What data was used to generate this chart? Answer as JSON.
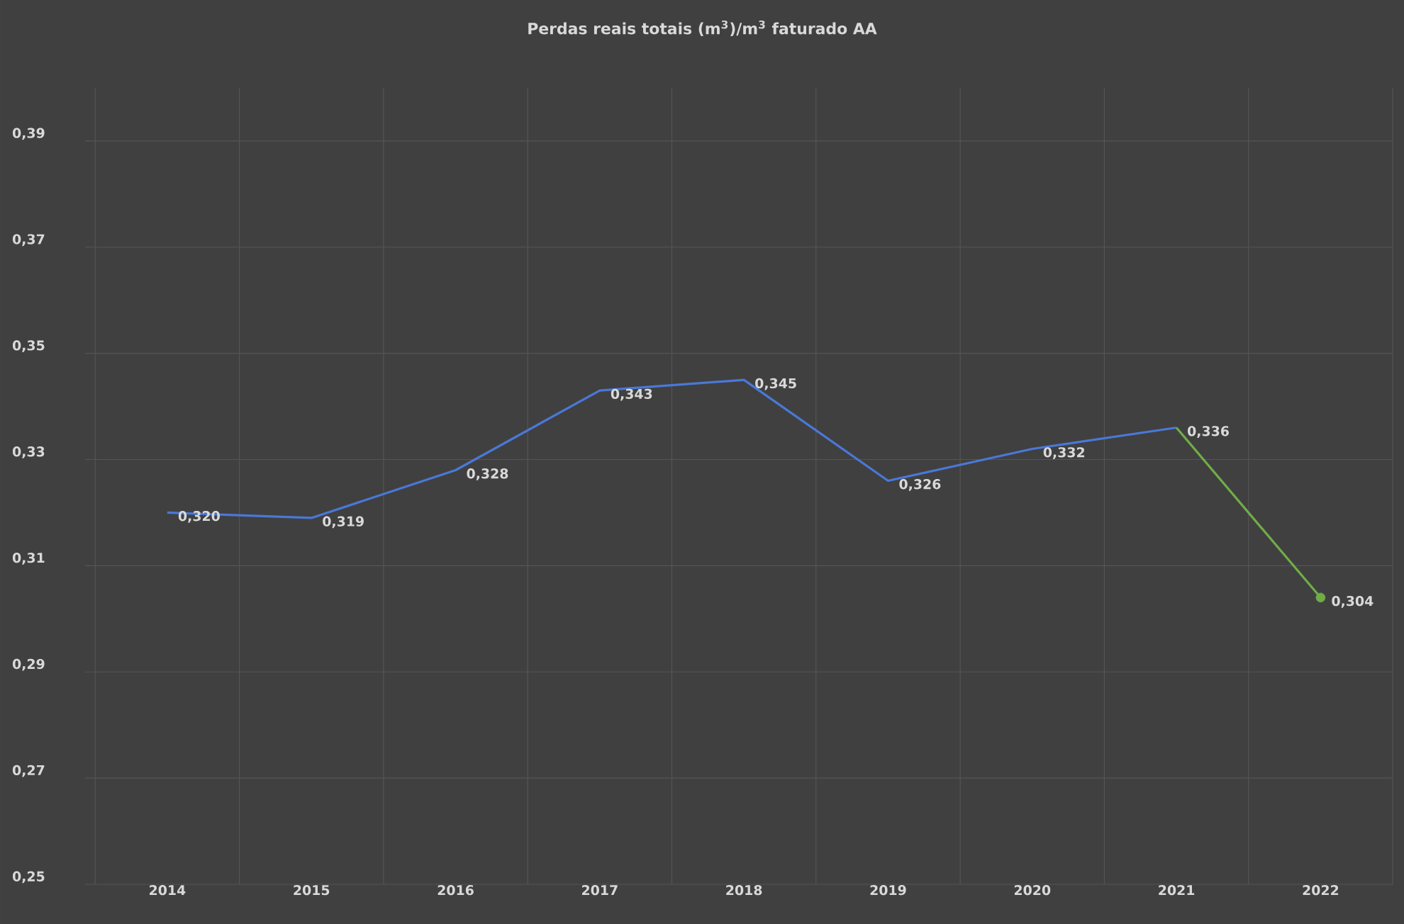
{
  "chart_data": {
    "type": "line",
    "title": "Perdas reais totais (m$^{3}$)/m$^{3}$ faturado AA",
    "categories": [
      "2014",
      "2015",
      "2016",
      "2017",
      "2018",
      "2019",
      "2020",
      "2021",
      "2022"
    ],
    "series": [
      {
        "color": "#4a78d8",
        "values": [
          0.32,
          0.319,
          0.328,
          0.343,
          0.345,
          0.326,
          0.332,
          0.336,
          null
        ],
        "value_labels": [
          "0,320",
          "0,319",
          "0,328",
          "0,343",
          "0,345",
          "0,326",
          "0,332",
          "0,336",
          null
        ]
      },
      {
        "color": "#70ad47",
        "values": [
          null,
          null,
          null,
          null,
          null,
          null,
          null,
          0.336,
          0.304
        ],
        "value_labels": [
          null,
          null,
          null,
          null,
          null,
          null,
          null,
          null,
          "0,304"
        ],
        "marker": "circle"
      }
    ],
    "ylim": [
      0.25,
      0.4
    ],
    "yticks": [
      {
        "value": 0.25,
        "label": "0,25"
      },
      {
        "value": 0.27,
        "label": "0,27"
      },
      {
        "value": 0.29,
        "label": "0,29"
      },
      {
        "value": 0.31,
        "label": "0,31"
      },
      {
        "value": 0.33,
        "label": "0,33"
      },
      {
        "value": 0.35,
        "label": "0,35"
      },
      {
        "value": 0.37,
        "label": "0,37"
      },
      {
        "value": 0.39,
        "label": "0,39"
      }
    ],
    "grid": true,
    "line_style": "solid"
  }
}
